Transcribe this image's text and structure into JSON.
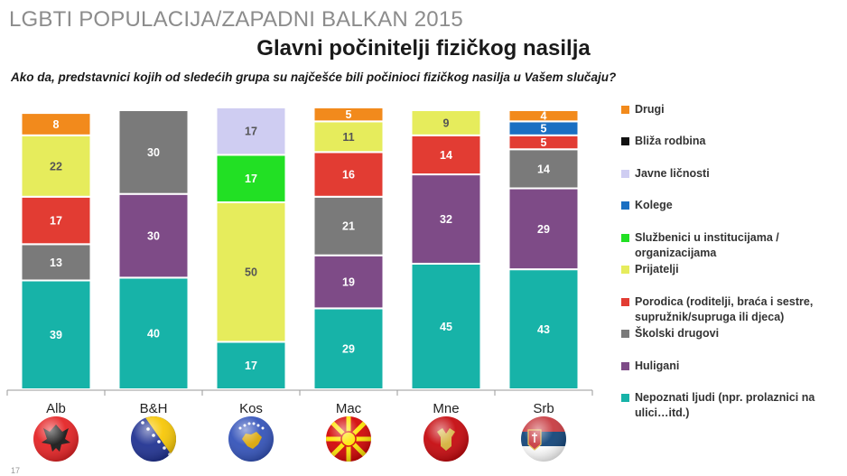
{
  "header": {
    "suptitle": "LGBTI POPULACIJA/ZAPADNI BALKAN 2015",
    "title": "Glavni počinitelji fizičkog nasilja",
    "question": "Ako da, predstavnici kojih od sledećih grupa su najčešće bili počinioci fizičkog nasilja u Vašem slučaju?",
    "page_number": "17"
  },
  "chart_data": {
    "type": "bar",
    "stacked": true,
    "categories": [
      "Alb",
      "B&H",
      "Kos",
      "Mac",
      "Mne",
      "Srb"
    ],
    "ylim": [
      0,
      100
    ],
    "series": [
      {
        "name": "Nepoznati ljudi (npr. prolaznici na ulici…itd.)",
        "color": "#17b3a8",
        "values": [
          39,
          40,
          17,
          29,
          45,
          43
        ]
      },
      {
        "name": "Huligani",
        "color": "#7e4b87",
        "values": [
          0,
          30,
          0,
          19,
          32,
          29
        ]
      },
      {
        "name": "Školski drugovi",
        "color": "#7a7a7a",
        "values": [
          13,
          30,
          0,
          21,
          0,
          14
        ]
      },
      {
        "name": "Porodica (roditelji, braća i sestre, supružnik/supruga ili djeca)",
        "color": "#e23c33",
        "values": [
          17,
          0,
          0,
          16,
          14,
          5
        ]
      },
      {
        "name": "Prijatelji",
        "color": "#e6ec5c",
        "values": [
          22,
          0,
          50,
          11,
          9,
          0
        ]
      },
      {
        "name": "Službenici u institucijama / organizacijama",
        "color": "#22e024",
        "values": [
          0,
          0,
          17,
          0,
          0,
          0
        ]
      },
      {
        "name": "Kolege",
        "color": "#1a6fc2",
        "values": [
          0,
          0,
          0,
          0,
          0,
          5
        ]
      },
      {
        "name": "Javne ličnosti",
        "color": "#cfcdf2",
        "values": [
          0,
          0,
          17,
          0,
          0,
          0
        ]
      },
      {
        "name": "Bliža rodbina",
        "color": "#111111",
        "values": [
          0,
          0,
          0,
          0,
          0,
          0
        ]
      },
      {
        "name": "Drugi",
        "color": "#f28a1c",
        "values": [
          8,
          0,
          0,
          5,
          0,
          4
        ]
      }
    ],
    "legend_position": "right",
    "grid": false
  },
  "flags": [
    "albania-flag-icon",
    "bosnia-flag-icon",
    "kosovo-flag-icon",
    "macedonia-flag-icon",
    "montenegro-flag-icon",
    "serbia-flag-icon"
  ],
  "legend": {
    "items": [
      {
        "label": "Drugi",
        "color": "#f28a1c"
      },
      {
        "label": "Bliža rodbina",
        "color": "#111111"
      },
      {
        "label": "Javne ličnosti",
        "color": "#cfcdf2"
      },
      {
        "label": "Kolege",
        "color": "#1a6fc2"
      },
      {
        "label": "Službenici u institucijama / organizacijama",
        "color": "#22e024"
      },
      {
        "label": "Prijatelji",
        "color": "#e6ec5c"
      },
      {
        "label": "Porodica (roditelji, braća i sestre, supružnik/supruga ili djeca)",
        "color": "#e23c33"
      },
      {
        "label": "Školski drugovi",
        "color": "#7a7a7a"
      },
      {
        "label": "Huligani",
        "color": "#7e4b87"
      },
      {
        "label": "Nepoznati ljudi (npr. prolaznici na ulici…itd.)",
        "color": "#17b3a8"
      }
    ]
  }
}
